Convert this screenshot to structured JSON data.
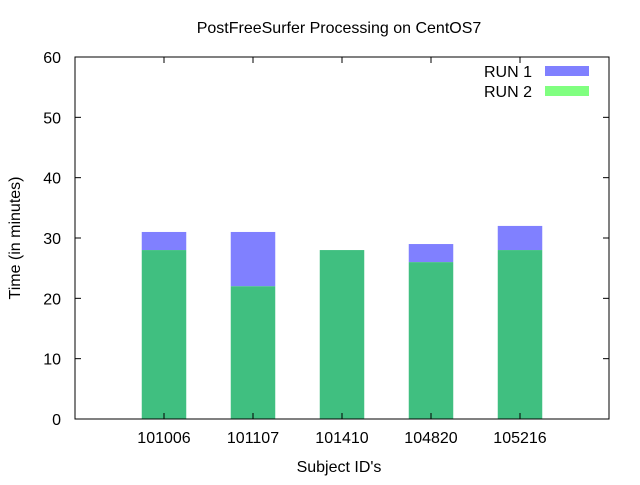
{
  "chart_data": {
    "type": "bar",
    "title": "PostFreeSurfer Processing on CentOS7",
    "xlabel": "Subject ID's",
    "ylabel": "Time (in minutes)",
    "categories": [
      "101006",
      "101107",
      "101410",
      "104820",
      "105216"
    ],
    "ylim": [
      0,
      60
    ],
    "yticks": [
      0,
      10,
      20,
      30,
      40,
      50,
      60
    ],
    "grid": false,
    "legend_position": "top-right",
    "overlap": true,
    "series": [
      {
        "name": "RUN 1",
        "color": "#8080ff",
        "values": [
          31,
          31,
          28,
          29,
          32
        ]
      },
      {
        "name": "RUN 2",
        "color": "#80ff80",
        "values": [
          28,
          22,
          28,
          26,
          28
        ]
      }
    ],
    "overlap_color": "#40bf80"
  }
}
